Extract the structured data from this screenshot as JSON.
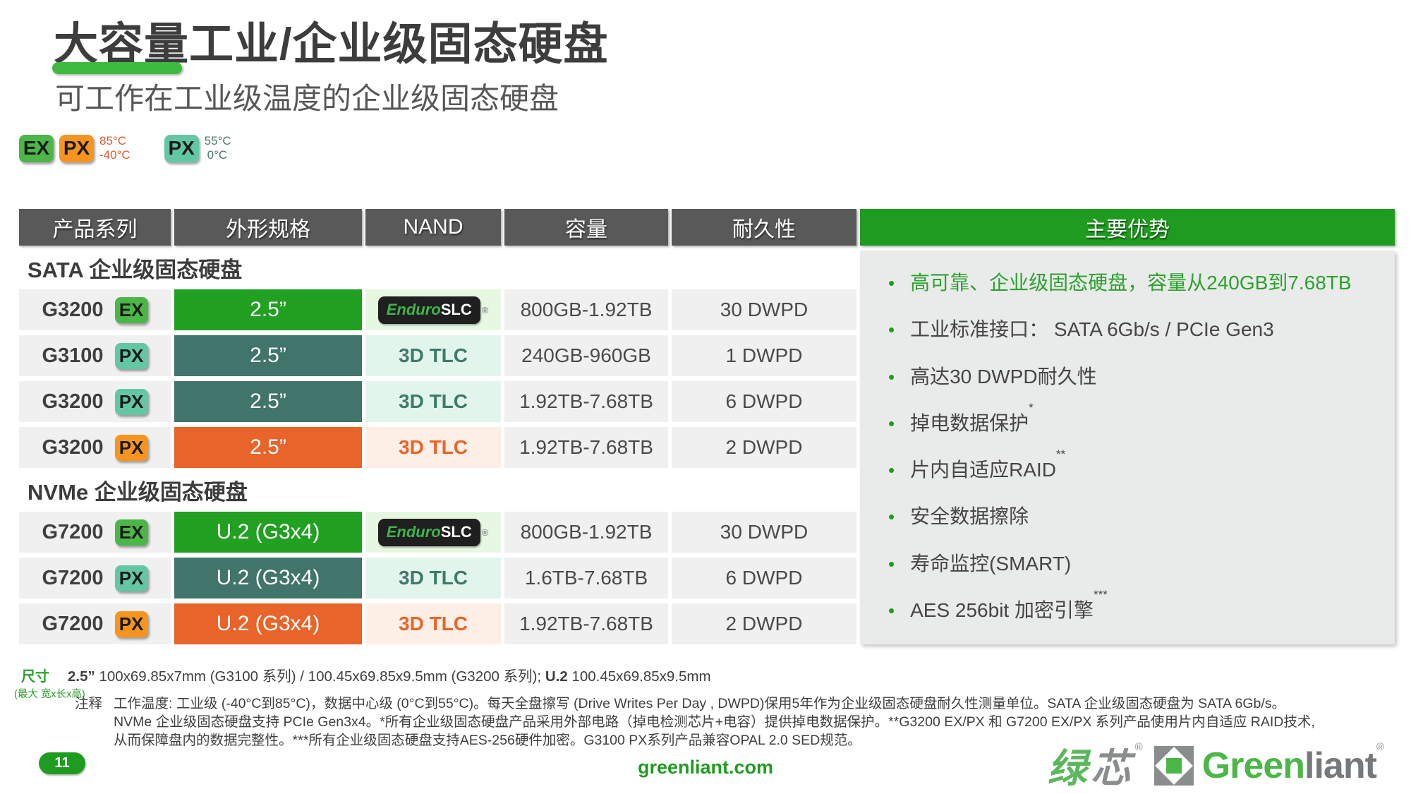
{
  "slide": {
    "title": "大容量工业/企业级固态硬盘",
    "subtitle": "可工作在工业级温度的企业级固态硬盘"
  },
  "legend": {
    "ex_label": "EX",
    "px_industrial_label": "PX",
    "industrial_temp_high": "85°C",
    "industrial_temp_low": "-40°C",
    "px_datacenter_label": "PX",
    "datacenter_temp_high": "55°C",
    "datacenter_temp_low": "0°C"
  },
  "table": {
    "headers": [
      "产品系列",
      "外形规格",
      "NAND",
      "容量",
      "耐久性",
      "主要优势"
    ],
    "sata_section_label": "SATA 企业级固态硬盘",
    "nvme_section_label": "NVMe 企业级固态硬盘",
    "enduro": {
      "enduro": "Enduro",
      "slc": "SLC",
      "reg": "®"
    },
    "rows": [
      {
        "product": "G3200",
        "badge": "EX",
        "badge_color": "green",
        "form": "2.5”",
        "nand": "EnduroSLC",
        "capacity": "800GB-1.92TB",
        "endurance": "30 DWPD"
      },
      {
        "product": "G3100",
        "badge": "PX",
        "badge_color": "teal",
        "form": "2.5”",
        "nand": "3D TLC",
        "capacity": "240GB-960GB",
        "endurance": "1 DWPD"
      },
      {
        "product": "G3200",
        "badge": "PX",
        "badge_color": "teal",
        "form": "2.5”",
        "nand": "3D TLC",
        "capacity": "1.92TB-7.68TB",
        "endurance": "6 DWPD"
      },
      {
        "product": "G3200",
        "badge": "PX",
        "badge_color": "orange",
        "form": "2.5”",
        "nand": "3D TLC",
        "capacity": "1.92TB-7.68TB",
        "endurance": "2 DWPD"
      },
      {
        "product": "G7200",
        "badge": "EX",
        "badge_color": "green",
        "form": "U.2 (G3x4)",
        "nand": "EnduroSLC",
        "capacity": "800GB-1.92TB",
        "endurance": "30 DWPD"
      },
      {
        "product": "G7200",
        "badge": "PX",
        "badge_color": "teal",
        "form": "U.2 (G3x4)",
        "nand": "3D TLC",
        "capacity": "1.6TB-7.68TB",
        "endurance": "6 DWPD"
      },
      {
        "product": "G7200",
        "badge": "PX",
        "badge_color": "orange",
        "form": "U.2 (G3x4)",
        "nand": "3D TLC",
        "capacity": "1.92TB-7.68TB",
        "endurance": "2 DWPD"
      }
    ]
  },
  "advantages": {
    "bullet": "•",
    "items": [
      {
        "text": "高可靠、企业级固态硬盘，容量从240GB到7.68TB",
        "sup": ""
      },
      {
        "text": "工业标准接口：  SATA 6Gb/s / PCIe Gen3",
        "sup": ""
      },
      {
        "text": "高达30 DWPD耐久性",
        "sup": ""
      },
      {
        "text": "掉电数据保护",
        "sup": "*"
      },
      {
        "text": "片内自适应RAID",
        "sup": "**"
      },
      {
        "text": "安全数据擦除",
        "sup": ""
      },
      {
        "text": "寿命监控(SMART)",
        "sup": ""
      },
      {
        "text": "AES 256bit 加密引擎",
        "sup": "***"
      }
    ]
  },
  "footer": {
    "dim_label": "尺寸",
    "dim_sublabel": "(最大 宽x长x高)",
    "dim_parts": {
      "p1": "2.5”",
      "p2": " 100x69.85x7mm (G3100 系列) / 100.45x69.85x9.5mm (G3200 系列); ",
      "p3": "U.2",
      "p4": " 100.45x69.85x9.5mm"
    },
    "notes_label": "注释",
    "note_line1": "工作温度: 工业级 (-40°C到85°C)，数据中心级 (0°C到55°C)。每天全盘擦写 (Drive Writes Per Day , DWPD)保用5年作为企业级固态硬盘耐久性测量单位。SATA 企业级固态硬盘为 SATA 6Gb/s。",
    "note_line2": "NVMe 企业级固态硬盘支持 PCIe Gen3x4。*所有企业级固态硬盘产品采用外部电路（掉电检测芯片+电容）提供掉电数据保护。**G3200 EX/PX 和  G7200 EX/PX 系列产品使用片内自适应  RAID技术,",
    "note_line3": "从而保障盘内的数据完整性。***所有企业级固态硬盘支持AES-256硬件加密。G3100 PX系列产品兼容OPAL 2.0 SED规范。",
    "page_number": "11",
    "website": "greenliant.com"
  },
  "logo": {
    "cn_green": "绿",
    "cn_gray": "芯",
    "reg": "®",
    "en_green": "Green",
    "en_gray": "liant"
  },
  "colors": {
    "brand_green": "#1f9c1f",
    "underline_green": "#3ebb3e",
    "badge_ex_green": "#4cb748",
    "badge_px_teal": "#63c7a3",
    "badge_px_orange": "#f7941e",
    "cell_form_green": "#21a021",
    "cell_form_teal": "#41746a",
    "cell_form_orange": "#e8642a",
    "header_gray": "#595959",
    "panel_gray": "#e9ebea",
    "temp_hot_orange": "#e05a2b",
    "temp_cold_teal": "#4a7a6e"
  }
}
